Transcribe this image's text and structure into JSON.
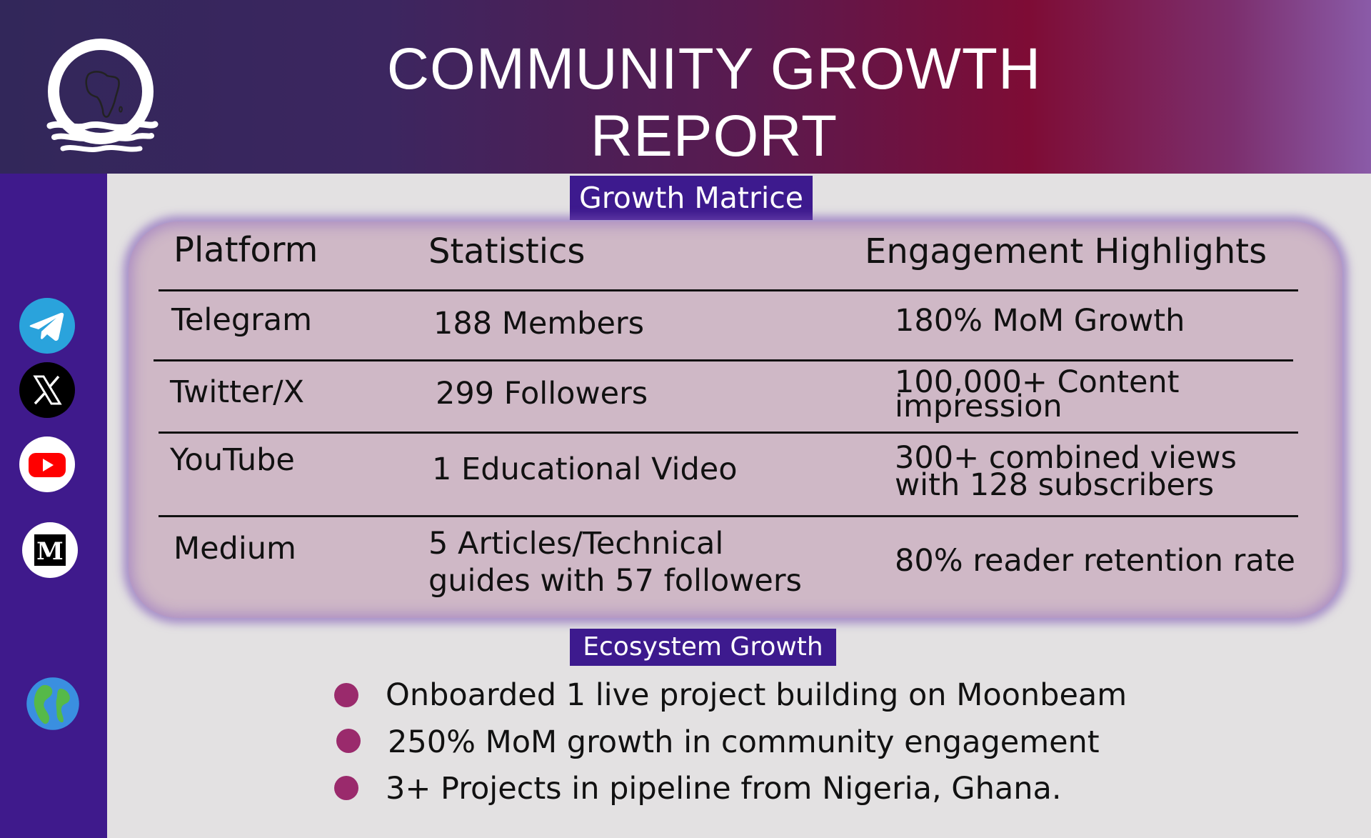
{
  "header": {
    "title": "COMMUNITY GROWTH REPORT"
  },
  "logo": {
    "icon": "africa-map-logo-icon"
  },
  "sidebar": {
    "icons": [
      "telegram-icon",
      "x-twitter-icon",
      "youtube-icon",
      "medium-icon",
      "globe-icon"
    ]
  },
  "growth_matrix": {
    "tag": "Growth Matrice",
    "columns": [
      "Platform",
      "Statistics",
      "Engagement Highlights"
    ],
    "rows": [
      {
        "platform": "Telegram",
        "stat": [
          "188 Members"
        ],
        "highlight": [
          "180% MoM Growth"
        ]
      },
      {
        "platform": "Twitter/X",
        "stat": [
          "299 Followers"
        ],
        "highlight": [
          "100,000+ Content",
          "impression"
        ]
      },
      {
        "platform": "YouTube",
        "stat": [
          "1 Educational Video"
        ],
        "highlight": [
          "300+ combined views",
          "with 128 subscribers"
        ]
      },
      {
        "platform": "Medium",
        "stat": [
          "5 Articles/Technical",
          "guides with 57 followers"
        ],
        "highlight": [
          "80% reader retention rate"
        ]
      }
    ]
  },
  "ecosystem": {
    "tag": "Ecosystem Growth",
    "items": [
      "Onboarded 1 live project building on Moonbeam",
      "250% MoM growth in community engagement",
      "3+ Projects in pipeline from Nigeria, Ghana."
    ]
  },
  "colors": {
    "sidebar": "#3f1a8c",
    "tag_bg": "#3d1a8e",
    "panel_bg": "#cfb8c6",
    "bullet": "#9a2a6c",
    "header_start": "#32275a",
    "header_mid": "#7e0c35"
  }
}
